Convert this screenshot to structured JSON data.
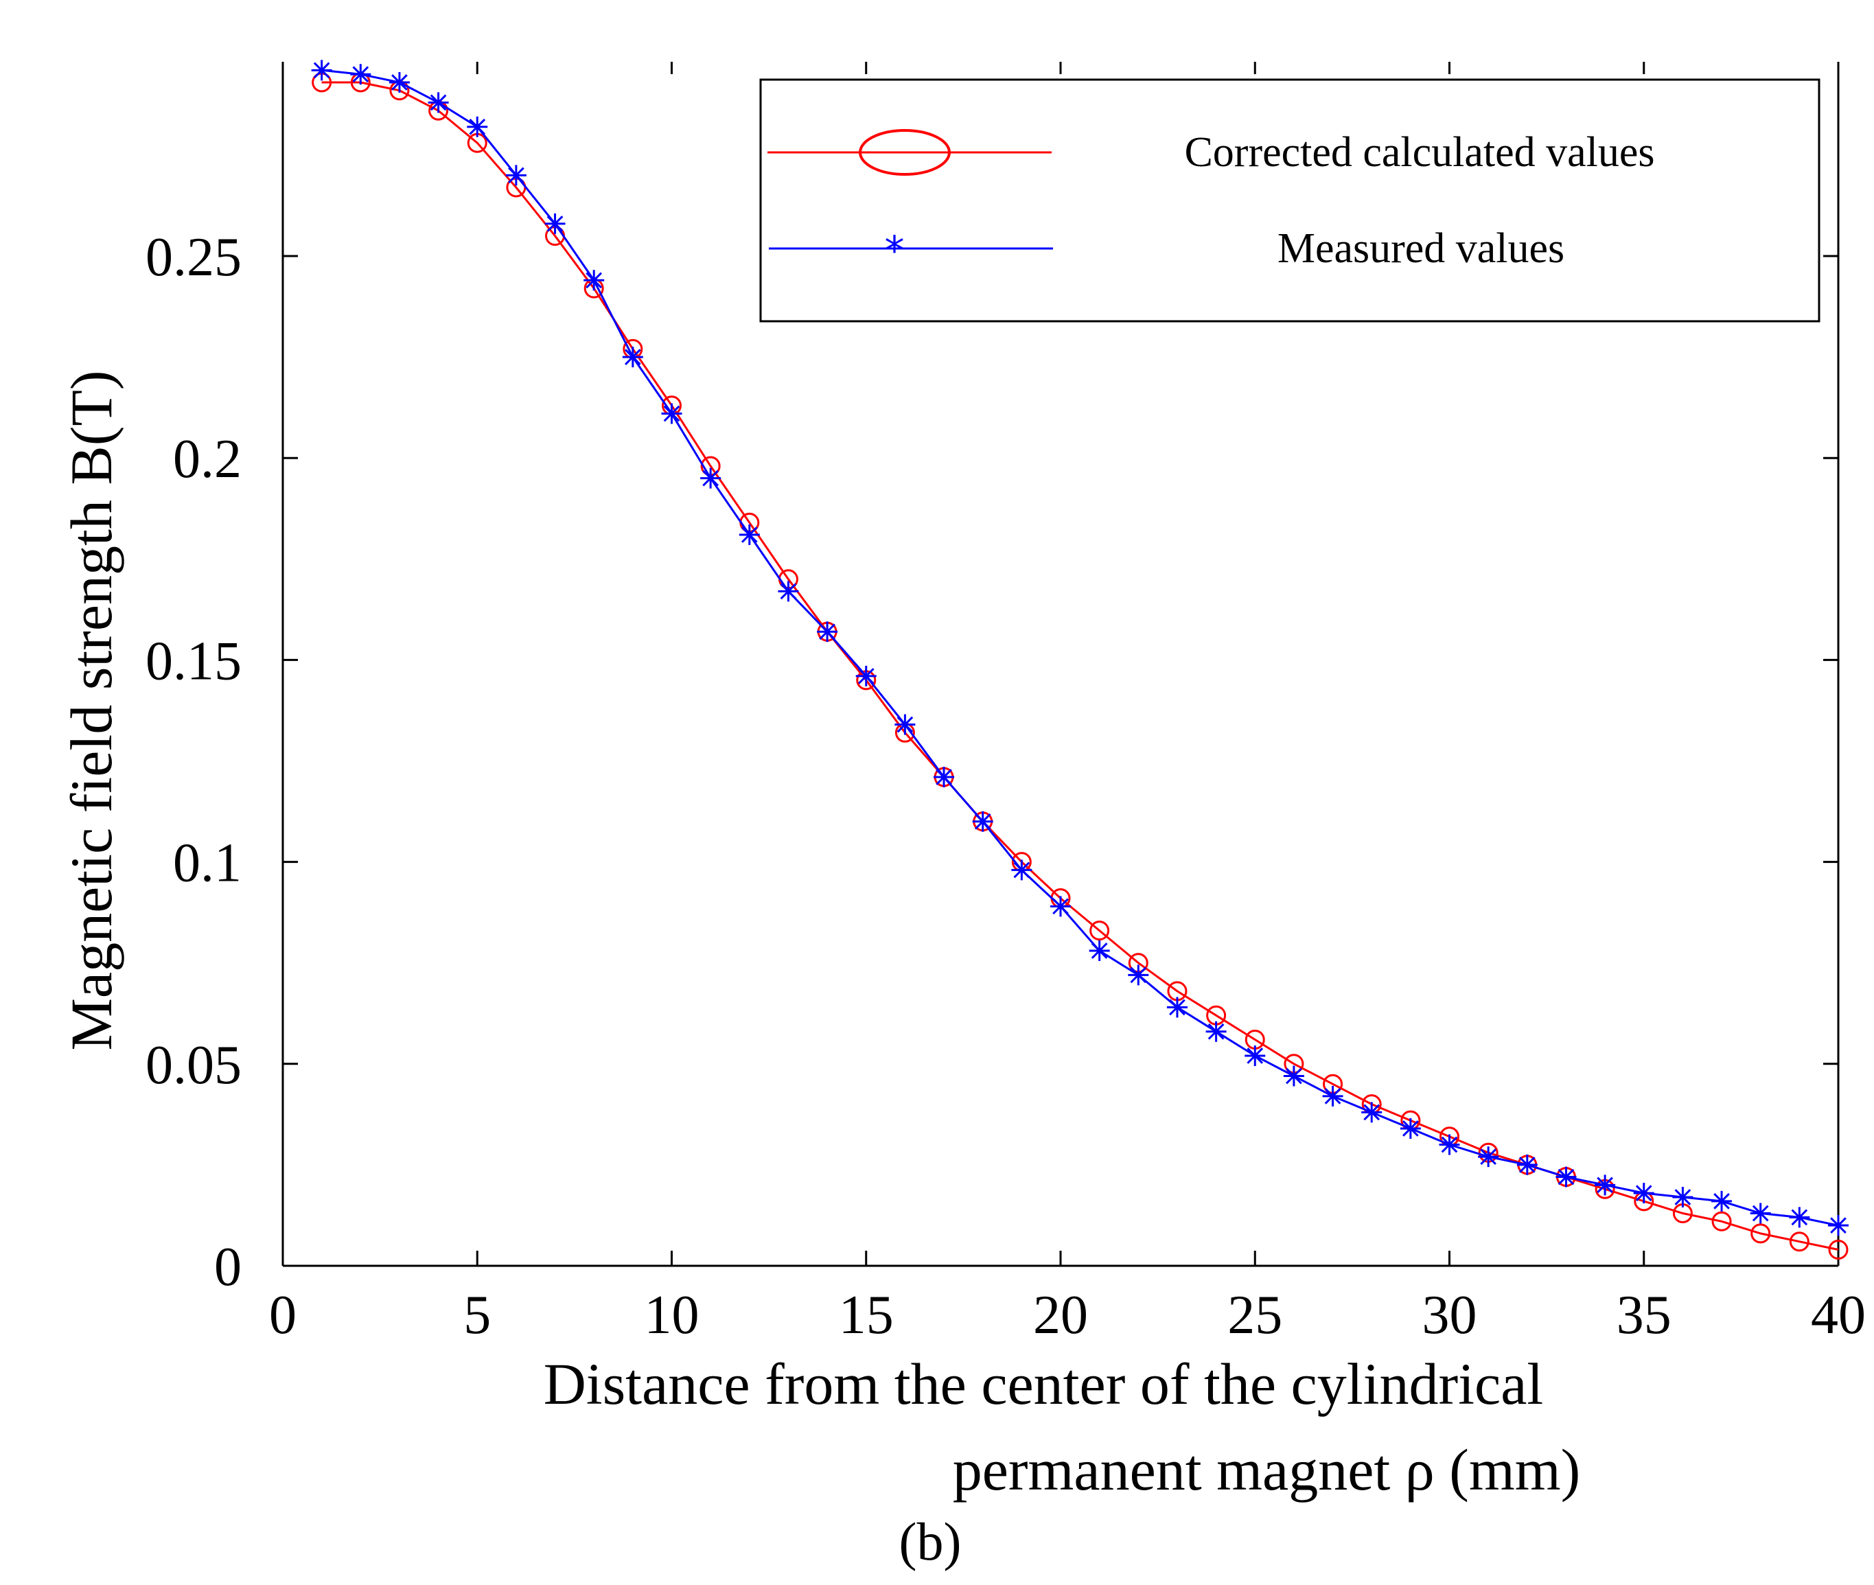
{
  "chart_data": {
    "type": "line",
    "title": "",
    "xlabel_line1": "Distance from the center of the cylindrical",
    "xlabel_line2": "permanent magnet ρ (mm)",
    "ylabel": "Magnetic field strength B(T)",
    "panel_label": "(b)",
    "xlim": [
      0,
      40
    ],
    "ylim": [
      0,
      0.295
    ],
    "x_ticks": [
      0,
      5,
      10,
      15,
      20,
      25,
      30,
      35,
      40
    ],
    "y_ticks": [
      0,
      0.05,
      0.1,
      0.15,
      0.2,
      0.25
    ],
    "x_tick_labels": [
      "0",
      "5",
      "10",
      "15",
      "20",
      "25",
      "30",
      "35",
      "40"
    ],
    "y_tick_labels": [
      "0",
      "0.05",
      "0.1",
      "0.15",
      "0.2",
      "0.25"
    ],
    "grid": false,
    "legend_position": "top-right",
    "x": [
      1,
      2,
      3,
      4,
      5,
      6,
      7,
      8,
      9,
      10,
      11,
      12,
      13,
      14,
      15,
      16,
      17,
      18,
      19,
      20,
      21,
      22,
      23,
      24,
      25,
      26,
      27,
      28,
      29,
      30,
      31,
      32,
      33,
      34,
      35,
      36,
      37,
      38,
      39,
      40
    ],
    "series": [
      {
        "name": "Corrected calculated values",
        "color": "#ff0000",
        "marker": "circle",
        "values": [
          0.293,
          0.293,
          0.291,
          0.286,
          0.278,
          0.267,
          0.255,
          0.242,
          0.227,
          0.213,
          0.198,
          0.184,
          0.17,
          0.157,
          0.145,
          0.132,
          0.121,
          0.11,
          0.1,
          0.091,
          0.083,
          0.075,
          0.068,
          0.062,
          0.056,
          0.05,
          0.045,
          0.04,
          0.036,
          0.032,
          0.028,
          0.025,
          0.022,
          0.019,
          0.016,
          0.013,
          0.011,
          0.008,
          0.006,
          0.004
        ]
      },
      {
        "name": "Measured values",
        "color": "#0000ff",
        "marker": "star",
        "values": [
          0.296,
          0.295,
          0.293,
          0.288,
          0.282,
          0.27,
          0.258,
          0.244,
          0.225,
          0.211,
          0.195,
          0.181,
          0.167,
          0.157,
          0.146,
          0.134,
          0.121,
          0.11,
          0.098,
          0.089,
          0.078,
          0.072,
          0.064,
          0.058,
          0.052,
          0.047,
          0.042,
          0.038,
          0.034,
          0.03,
          0.027,
          0.025,
          0.022,
          0.02,
          0.018,
          0.017,
          0.016,
          0.013,
          0.012,
          0.01
        ]
      }
    ]
  }
}
